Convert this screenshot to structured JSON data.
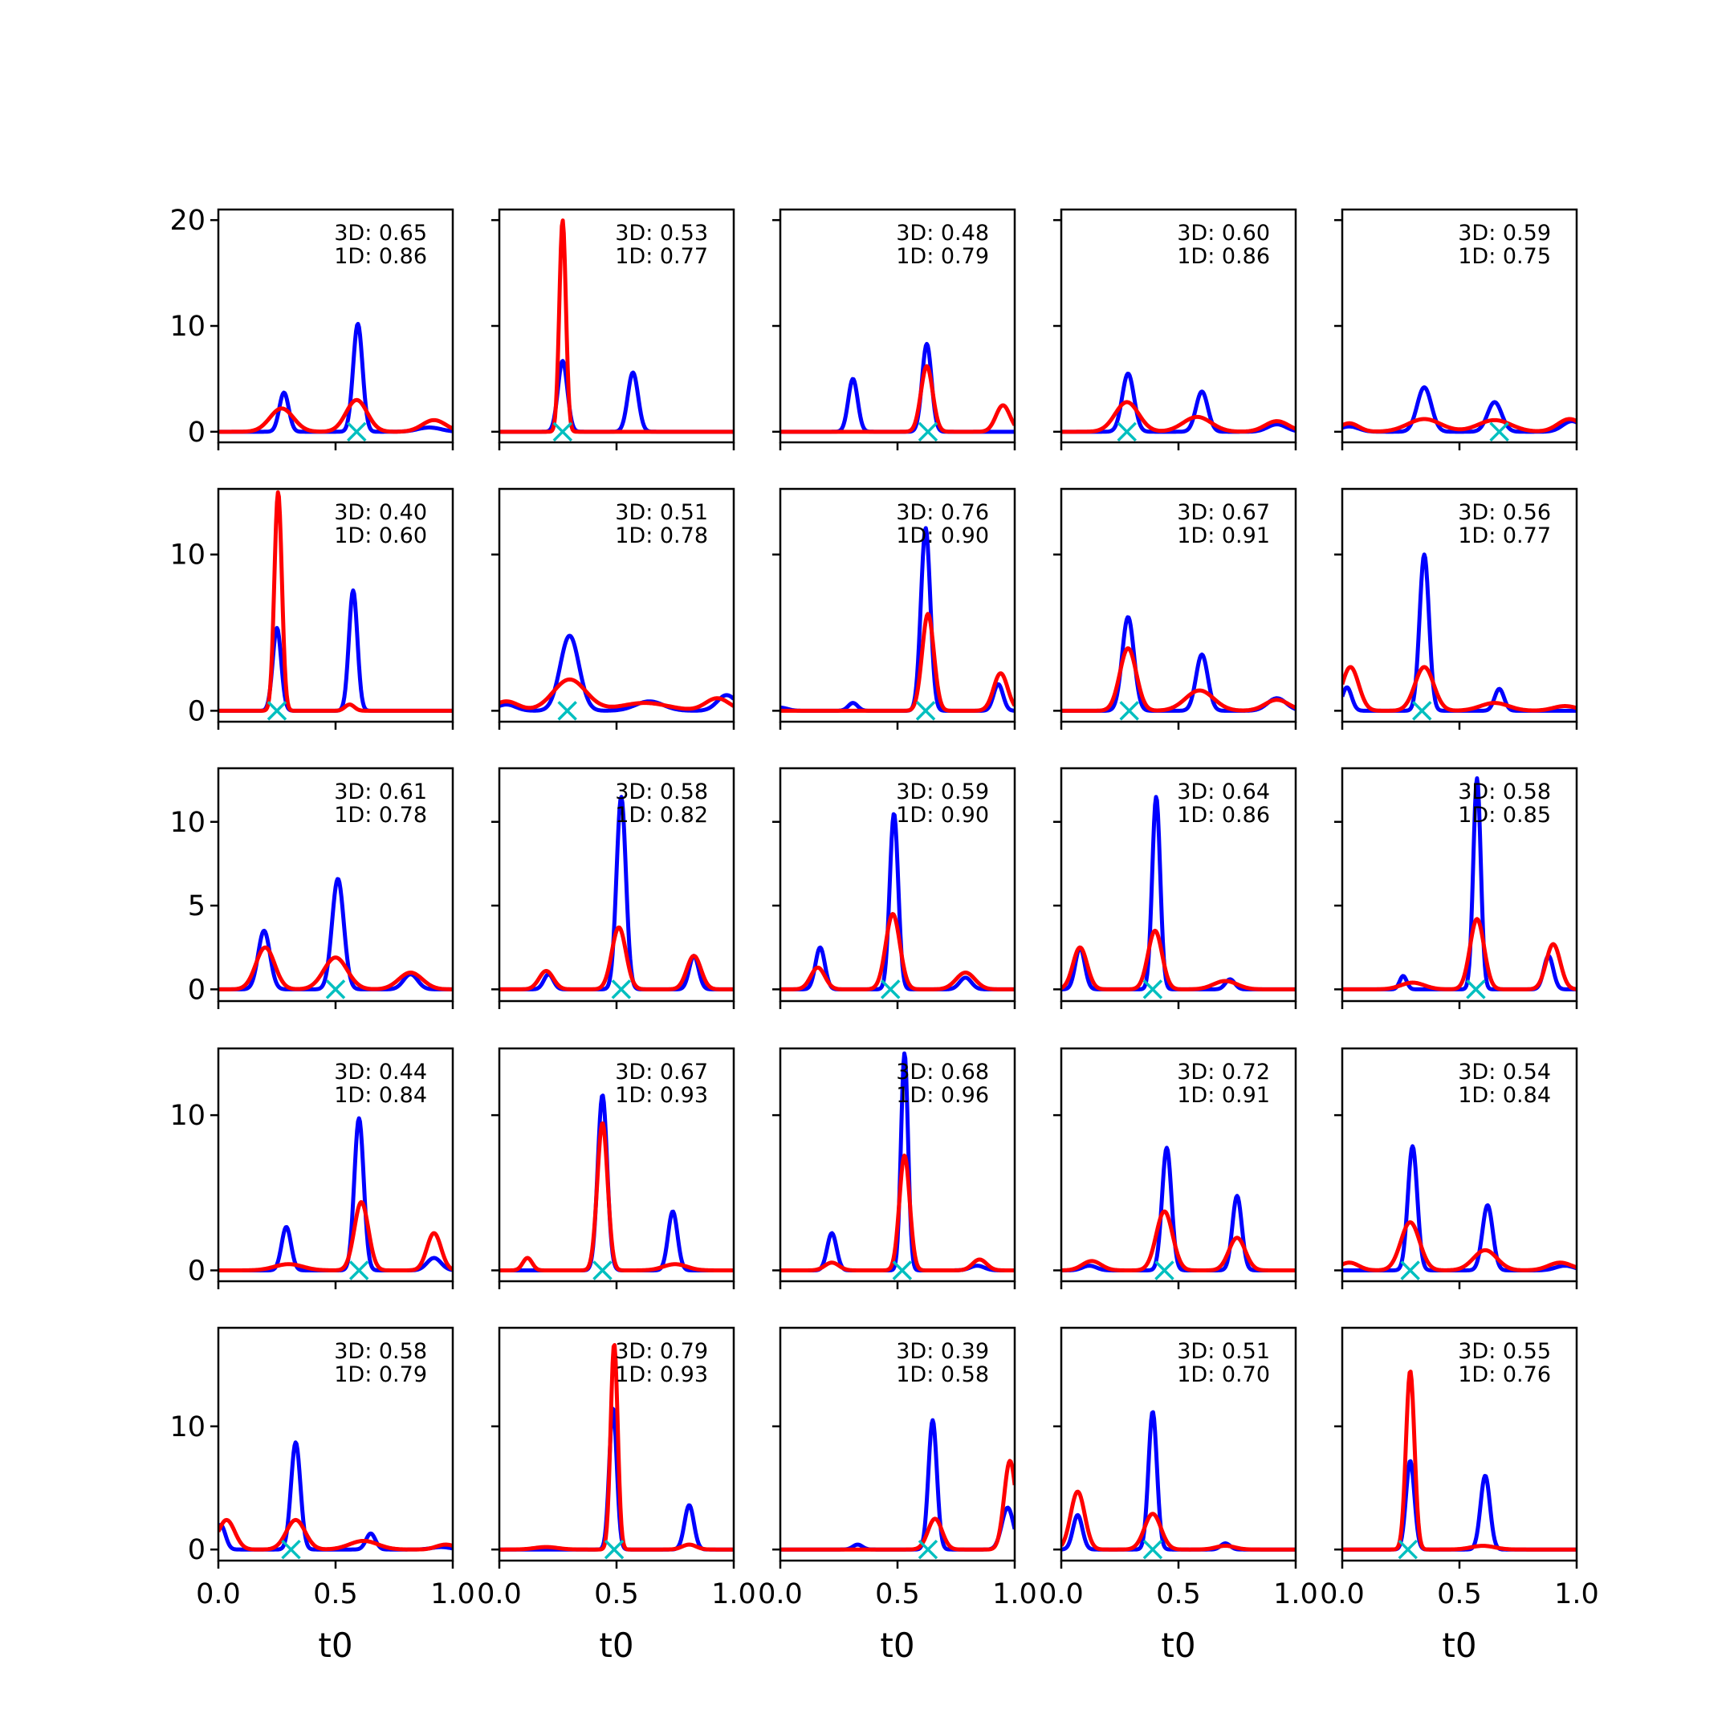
{
  "chart_data": {
    "type": "line",
    "layout": "5x5 grid of small multiples",
    "x_axis": {
      "label": "t0",
      "range": [
        0,
        1
      ],
      "ticks": [
        "0.0",
        "0.5",
        "1.0"
      ]
    },
    "rows": [
      {
        "yrange": [
          -1,
          21
        ],
        "yticks": [
          0,
          10,
          20
        ]
      },
      {
        "yrange": [
          -0.7,
          14.2
        ],
        "yticks": [
          0,
          10
        ]
      },
      {
        "yrange": [
          -0.7,
          13.2
        ],
        "yticks": [
          0,
          5,
          10
        ]
      },
      {
        "yrange": [
          -0.7,
          14.3
        ],
        "yticks": [
          0,
          10
        ]
      },
      {
        "yrange": [
          -0.9,
          18.0
        ],
        "yticks": [
          0,
          10
        ]
      }
    ],
    "series_style": {
      "blue": {
        "color": "#0000ff"
      },
      "red": {
        "color": "#ff0000"
      },
      "marker": {
        "color": "#00bfbf",
        "symbol": "x"
      }
    },
    "panels": [
      {
        "row": 0,
        "col": 0,
        "label3d": "3D: 0.65",
        "label1d": "1D: 0.86",
        "marker_x": 0.59,
        "blue": [
          [
            0.28,
            3.7,
            0.02
          ],
          [
            0.595,
            10.2,
            0.02
          ],
          [
            0.9,
            0.4,
            0.05
          ]
        ],
        "red": [
          [
            0.27,
            2.2,
            0.05
          ],
          [
            0.59,
            3.0,
            0.045
          ],
          [
            0.92,
            1.1,
            0.05
          ]
        ]
      },
      {
        "row": 0,
        "col": 1,
        "label3d": "3D: 0.53",
        "label1d": "1D: 0.77",
        "marker_x": 0.27,
        "blue": [
          [
            0.27,
            6.7,
            0.02
          ],
          [
            0.57,
            5.6,
            0.022
          ]
        ],
        "red": [
          [
            0.27,
            20,
            0.014
          ]
        ]
      },
      {
        "row": 0,
        "col": 2,
        "label3d": "3D: 0.48",
        "label1d": "1D: 0.79",
        "marker_x": 0.63,
        "blue": [
          [
            0.31,
            5.0,
            0.02
          ],
          [
            0.625,
            8.3,
            0.02
          ]
        ],
        "red": [
          [
            0.625,
            6.2,
            0.025
          ],
          [
            0.95,
            2.5,
            0.03
          ]
        ]
      },
      {
        "row": 0,
        "col": 3,
        "label3d": "3D: 0.60",
        "label1d": "1D: 0.86",
        "marker_x": 0.28,
        "blue": [
          [
            0.285,
            5.5,
            0.025
          ],
          [
            0.6,
            3.8,
            0.025
          ],
          [
            0.92,
            0.7,
            0.04
          ]
        ],
        "red": [
          [
            0.28,
            2.8,
            0.05
          ],
          [
            0.58,
            1.4,
            0.06
          ],
          [
            0.92,
            1.0,
            0.05
          ]
        ]
      },
      {
        "row": 0,
        "col": 4,
        "label3d": "3D: 0.59",
        "label1d": "1D: 0.75",
        "marker_x": 0.67,
        "blue": [
          [
            0.35,
            4.2,
            0.03
          ],
          [
            0.65,
            2.8,
            0.03
          ],
          [
            0.98,
            1.0,
            0.04
          ],
          [
            0.03,
            0.5,
            0.04
          ]
        ],
        "red": [
          [
            0.35,
            1.2,
            0.07
          ],
          [
            0.65,
            1.1,
            0.07
          ],
          [
            0.97,
            1.2,
            0.05
          ],
          [
            0.03,
            0.8,
            0.04
          ]
        ]
      },
      {
        "row": 1,
        "col": 0,
        "label3d": "3D: 0.40",
        "label1d": "1D: 0.60",
        "marker_x": 0.25,
        "blue": [
          [
            0.25,
            5.3,
            0.018
          ],
          [
            0.575,
            7.7,
            0.018
          ]
        ],
        "red": [
          [
            0.255,
            14.0,
            0.016
          ],
          [
            0.56,
            0.4,
            0.02
          ]
        ]
      },
      {
        "row": 1,
        "col": 1,
        "label3d": "3D: 0.51",
        "label1d": "1D: 0.78",
        "marker_x": 0.29,
        "blue": [
          [
            0.3,
            4.8,
            0.04
          ],
          [
            0.64,
            0.6,
            0.06
          ],
          [
            0.97,
            1.0,
            0.04
          ],
          [
            0.03,
            0.4,
            0.04
          ]
        ],
        "red": [
          [
            0.3,
            2.0,
            0.07
          ],
          [
            0.93,
            0.8,
            0.05
          ],
          [
            0.03,
            0.6,
            0.05
          ],
          [
            0.62,
            0.5,
            0.1
          ]
        ]
      },
      {
        "row": 1,
        "col": 2,
        "label3d": "3D: 0.76",
        "label1d": "1D: 0.90",
        "marker_x": 0.62,
        "blue": [
          [
            0.62,
            11.7,
            0.02
          ],
          [
            0.93,
            1.7,
            0.02
          ],
          [
            0.31,
            0.5,
            0.02
          ],
          [
            0.0,
            0.2,
            0.03
          ]
        ],
        "red": [
          [
            0.63,
            6.2,
            0.025
          ],
          [
            0.94,
            2.4,
            0.03
          ]
        ]
      },
      {
        "row": 1,
        "col": 3,
        "label3d": "3D: 0.67",
        "label1d": "1D: 0.91",
        "marker_x": 0.29,
        "blue": [
          [
            0.285,
            6.0,
            0.025
          ],
          [
            0.6,
            3.6,
            0.025
          ],
          [
            0.92,
            0.8,
            0.04
          ]
        ],
        "red": [
          [
            0.285,
            4.0,
            0.035
          ],
          [
            0.59,
            1.3,
            0.06
          ],
          [
            0.92,
            0.7,
            0.05
          ]
        ]
      },
      {
        "row": 1,
        "col": 4,
        "label3d": "3D: 0.56",
        "label1d": "1D: 0.77",
        "marker_x": 0.34,
        "blue": [
          [
            0.35,
            10.0,
            0.02
          ],
          [
            0.02,
            1.5,
            0.02
          ],
          [
            0.67,
            1.4,
            0.02
          ]
        ],
        "red": [
          [
            0.035,
            2.8,
            0.035
          ],
          [
            0.35,
            2.8,
            0.04
          ],
          [
            0.65,
            0.5,
            0.06
          ],
          [
            0.95,
            0.3,
            0.05
          ]
        ]
      },
      {
        "row": 2,
        "col": 0,
        "label3d": "3D: 0.61",
        "label1d": "1D: 0.78",
        "marker_x": 0.5,
        "blue": [
          [
            0.195,
            3.5,
            0.025
          ],
          [
            0.51,
            6.6,
            0.025
          ],
          [
            0.82,
            0.9,
            0.03
          ]
        ],
        "red": [
          [
            0.2,
            2.5,
            0.04
          ],
          [
            0.5,
            1.9,
            0.05
          ],
          [
            0.82,
            1.0,
            0.05
          ]
        ]
      },
      {
        "row": 2,
        "col": 1,
        "label3d": "3D: 0.58",
        "label1d": "1D: 0.82",
        "marker_x": 0.52,
        "blue": [
          [
            0.52,
            11.5,
            0.02
          ],
          [
            0.83,
            2.0,
            0.02
          ],
          [
            0.21,
            0.9,
            0.02
          ]
        ],
        "red": [
          [
            0.51,
            3.7,
            0.03
          ],
          [
            0.83,
            2.0,
            0.03
          ],
          [
            0.2,
            1.1,
            0.03
          ]
        ]
      },
      {
        "row": 2,
        "col": 2,
        "label3d": "3D: 0.59",
        "label1d": "1D: 0.90",
        "marker_x": 0.47,
        "blue": [
          [
            0.485,
            10.5,
            0.018
          ],
          [
            0.17,
            2.5,
            0.02
          ],
          [
            0.79,
            0.7,
            0.025
          ]
        ],
        "red": [
          [
            0.48,
            4.5,
            0.03
          ],
          [
            0.16,
            1.3,
            0.03
          ],
          [
            0.79,
            1.0,
            0.04
          ]
        ]
      },
      {
        "row": 2,
        "col": 3,
        "label3d": "3D: 0.64",
        "label1d": "1D: 0.86",
        "marker_x": 0.39,
        "blue": [
          [
            0.405,
            11.5,
            0.017
          ],
          [
            0.08,
            2.5,
            0.02
          ],
          [
            0.72,
            0.6,
            0.02
          ]
        ],
        "red": [
          [
            0.08,
            2.5,
            0.03
          ],
          [
            0.4,
            3.5,
            0.03
          ],
          [
            0.7,
            0.5,
            0.05
          ]
        ]
      },
      {
        "row": 2,
        "col": 4,
        "label3d": "3D: 0.58",
        "label1d": "1D: 0.85",
        "marker_x": 0.57,
        "blue": [
          [
            0.575,
            12.6,
            0.016
          ],
          [
            0.88,
            2.0,
            0.02
          ],
          [
            0.26,
            0.8,
            0.015
          ]
        ],
        "red": [
          [
            0.575,
            4.2,
            0.03
          ],
          [
            0.9,
            2.7,
            0.03
          ],
          [
            0.3,
            0.4,
            0.05
          ]
        ]
      },
      {
        "row": 3,
        "col": 0,
        "label3d": "3D: 0.44",
        "label1d": "1D: 0.84",
        "marker_x": 0.6,
        "blue": [
          [
            0.6,
            9.8,
            0.02
          ],
          [
            0.29,
            2.8,
            0.02
          ],
          [
            0.92,
            0.8,
            0.03
          ]
        ],
        "red": [
          [
            0.61,
            4.4,
            0.03
          ],
          [
            0.92,
            2.4,
            0.03
          ],
          [
            0.3,
            0.4,
            0.06
          ]
        ]
      },
      {
        "row": 3,
        "col": 1,
        "label3d": "3D: 0.67",
        "label1d": "1D: 0.93",
        "marker_x": 0.44,
        "blue": [
          [
            0.44,
            11.3,
            0.02
          ],
          [
            0.74,
            3.8,
            0.02
          ]
        ],
        "red": [
          [
            0.44,
            9.5,
            0.022
          ],
          [
            0.12,
            0.8,
            0.02
          ],
          [
            0.75,
            0.4,
            0.05
          ]
        ]
      },
      {
        "row": 3,
        "col": 2,
        "label3d": "3D: 0.68",
        "label1d": "1D: 0.96",
        "marker_x": 0.52,
        "blue": [
          [
            0.53,
            14.0,
            0.015
          ],
          [
            0.22,
            2.4,
            0.02
          ],
          [
            0.84,
            0.3,
            0.03
          ]
        ],
        "red": [
          [
            0.53,
            7.4,
            0.022
          ],
          [
            0.22,
            0.5,
            0.03
          ],
          [
            0.85,
            0.7,
            0.03
          ]
        ]
      },
      {
        "row": 3,
        "col": 3,
        "label3d": "3D: 0.72",
        "label1d": "1D: 0.91",
        "marker_x": 0.44,
        "blue": [
          [
            0.45,
            7.9,
            0.02
          ],
          [
            0.75,
            4.8,
            0.02
          ],
          [
            0.12,
            0.3,
            0.03
          ]
        ],
        "red": [
          [
            0.44,
            3.8,
            0.035
          ],
          [
            0.75,
            2.1,
            0.035
          ],
          [
            0.13,
            0.6,
            0.04
          ]
        ]
      },
      {
        "row": 3,
        "col": 4,
        "label3d": "3D: 0.54",
        "label1d": "1D: 0.84",
        "marker_x": 0.29,
        "blue": [
          [
            0.3,
            8.0,
            0.02
          ],
          [
            0.62,
            4.2,
            0.022
          ],
          [
            0.95,
            0.3,
            0.04
          ]
        ],
        "red": [
          [
            0.29,
            3.1,
            0.04
          ],
          [
            0.61,
            1.3,
            0.05
          ],
          [
            0.03,
            0.5,
            0.04
          ],
          [
            0.93,
            0.5,
            0.05
          ]
        ]
      },
      {
        "row": 4,
        "col": 0,
        "label3d": "3D: 0.58",
        "label1d": "1D: 0.79",
        "marker_x": 0.31,
        "blue": [
          [
            0.33,
            8.7,
            0.02
          ],
          [
            0.01,
            2.0,
            0.02
          ],
          [
            0.65,
            1.3,
            0.02
          ],
          [
            0.95,
            0.2,
            0.04
          ]
        ],
        "red": [
          [
            0.035,
            2.4,
            0.035
          ],
          [
            0.33,
            2.4,
            0.04
          ],
          [
            0.62,
            0.7,
            0.06
          ],
          [
            0.97,
            0.4,
            0.04
          ]
        ]
      },
      {
        "row": 4,
        "col": 1,
        "label3d": "3D: 0.79",
        "label1d": "1D: 0.93",
        "marker_x": 0.49,
        "blue": [
          [
            0.485,
            11.5,
            0.016
          ],
          [
            0.81,
            3.6,
            0.02
          ]
        ],
        "red": [
          [
            0.49,
            16.7,
            0.015
          ],
          [
            0.81,
            0.4,
            0.03
          ],
          [
            0.2,
            0.2,
            0.05
          ]
        ]
      },
      {
        "row": 4,
        "col": 2,
        "label3d": "3D: 0.39",
        "label1d": "1D: 0.58",
        "marker_x": 0.63,
        "blue": [
          [
            0.65,
            10.5,
            0.018
          ],
          [
            0.97,
            3.4,
            0.025
          ],
          [
            0.33,
            0.4,
            0.02
          ]
        ],
        "red": [
          [
            0.66,
            2.5,
            0.03
          ],
          [
            0.98,
            7.2,
            0.025
          ]
        ]
      },
      {
        "row": 4,
        "col": 3,
        "label3d": "3D: 0.51",
        "label1d": "1D: 0.70",
        "marker_x": 0.39,
        "blue": [
          [
            0.39,
            11.2,
            0.018
          ],
          [
            0.07,
            2.8,
            0.02
          ],
          [
            0.7,
            0.5,
            0.02
          ]
        ],
        "red": [
          [
            0.07,
            4.7,
            0.03
          ],
          [
            0.39,
            2.9,
            0.035
          ],
          [
            0.7,
            0.3,
            0.04
          ]
        ]
      },
      {
        "row": 4,
        "col": 4,
        "label3d": "3D: 0.55",
        "label1d": "1D: 0.76",
        "marker_x": 0.28,
        "blue": [
          [
            0.29,
            7.2,
            0.018
          ],
          [
            0.61,
            6.0,
            0.02
          ]
        ],
        "red": [
          [
            0.29,
            14.5,
            0.018
          ],
          [
            0.6,
            0.3,
            0.05
          ]
        ]
      }
    ]
  }
}
